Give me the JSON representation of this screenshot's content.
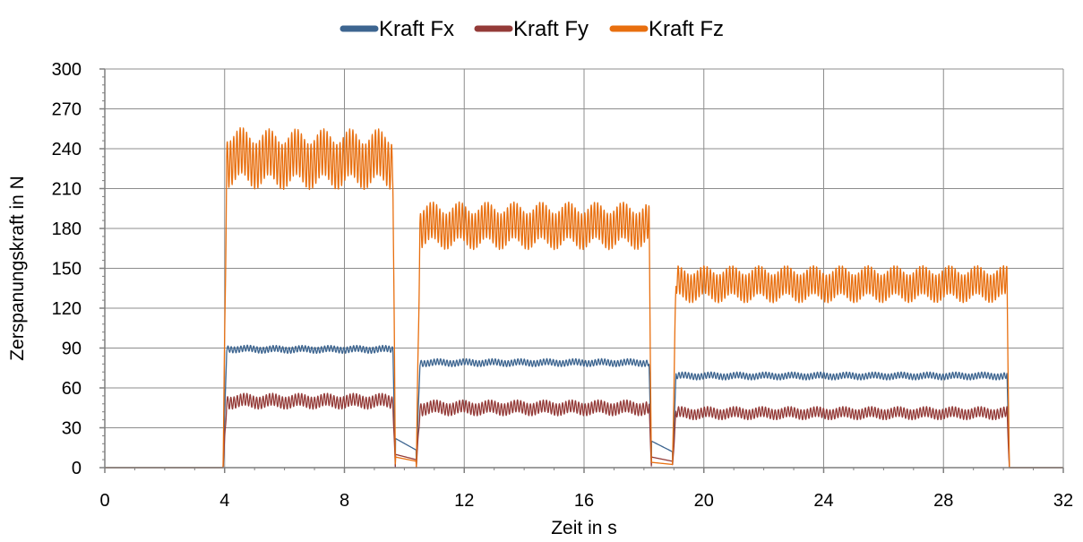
{
  "chart_data": {
    "type": "line",
    "xlabel": "Zeit in s",
    "ylabel": "Zerspanungskraft in N",
    "xlim": [
      0,
      32
    ],
    "ylim": [
      0,
      300
    ],
    "x_ticks": [
      0,
      4,
      8,
      12,
      16,
      20,
      24,
      28,
      32
    ],
    "y_ticks": [
      0,
      30,
      60,
      90,
      120,
      150,
      180,
      210,
      240,
      270,
      300
    ],
    "grid": true,
    "legend_position": "top-center",
    "series": [
      {
        "name": "Kraft Fx",
        "color": "#3d6590",
        "segments": [
          {
            "start": 3.95,
            "end": 9.7,
            "mean": 89,
            "amplitude": 3,
            "peak": 93
          },
          {
            "start": 10.4,
            "end": 18.25,
            "mean": 79,
            "amplitude": 3
          },
          {
            "start": 18.95,
            "end": 30.2,
            "mean": 69,
            "amplitude": 3
          }
        ],
        "gaps": [
          {
            "start": 9.7,
            "end": 10.4,
            "level": 22
          },
          {
            "start": 18.25,
            "end": 18.95,
            "level": 20
          }
        ]
      },
      {
        "name": "Kraft Fy",
        "color": "#943b38",
        "segments": [
          {
            "start": 3.95,
            "end": 9.7,
            "mean": 50,
            "amplitude": 6
          },
          {
            "start": 10.4,
            "end": 18.25,
            "mean": 45,
            "amplitude": 6
          },
          {
            "start": 18.95,
            "end": 30.2,
            "mean": 41,
            "amplitude": 5
          }
        ],
        "gaps": [
          {
            "start": 9.7,
            "end": 10.4,
            "level": 10
          },
          {
            "start": 18.25,
            "end": 18.95,
            "level": 8
          }
        ]
      },
      {
        "name": "Kraft Fz",
        "color": "#e86f0f",
        "segments": [
          {
            "start": 3.95,
            "end": 9.7,
            "mean": 232,
            "amplitude": 23,
            "peak": 259
          },
          {
            "start": 10.4,
            "end": 18.25,
            "mean": 182,
            "amplitude": 18
          },
          {
            "start": 18.95,
            "end": 30.2,
            "mean": 138,
            "amplitude": 14
          }
        ],
        "gaps": [
          {
            "start": 9.7,
            "end": 10.4,
            "level": 8
          },
          {
            "start": 18.25,
            "end": 18.95,
            "level": 4
          }
        ]
      }
    ]
  }
}
